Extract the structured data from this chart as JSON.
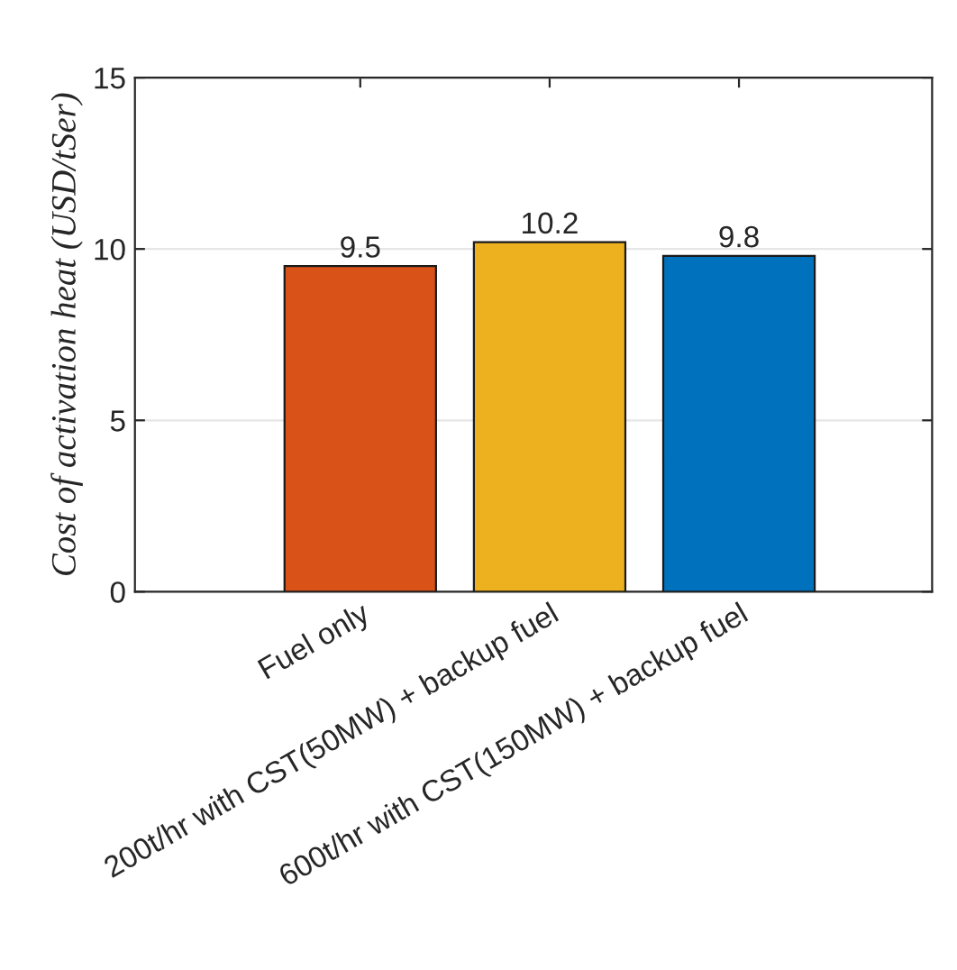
{
  "chart_data": {
    "type": "bar",
    "ylabel": "Cost of activation heat (USD/tSer)",
    "categories": [
      "Fuel only",
      "200t/hr with CST(50MW) + backup fuel",
      "600t/hr with CST(150MW) + backup fuel"
    ],
    "values": [
      9.5,
      10.2,
      9.8
    ],
    "colors": [
      "#d95319",
      "#edb120",
      "#0072bd"
    ],
    "ylim": [
      0,
      15
    ],
    "yticks": [
      0,
      5,
      10,
      15
    ],
    "grid": "y",
    "data_labels": true
  }
}
